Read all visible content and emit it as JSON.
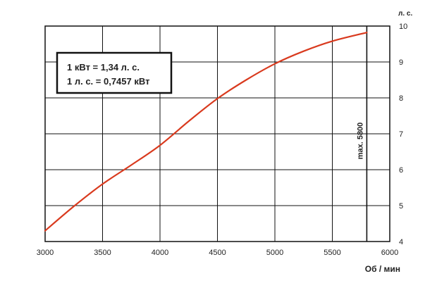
{
  "chart_data": {
    "type": "line",
    "xlabel": "Об / мин",
    "ylabel": "л. с.",
    "xlim": [
      3000,
      6000
    ],
    "ylim": [
      4,
      10
    ],
    "x_ticks": [
      "3000",
      "3500",
      "4000",
      "4500",
      "5000",
      "5500",
      "6000"
    ],
    "y_ticks": [
      "4",
      "5",
      "6",
      "7",
      "8",
      "9",
      "10"
    ],
    "grid": true,
    "series": [
      {
        "color": "#d93a1e",
        "x": [
          3000,
          3250,
          3500,
          3750,
          4000,
          4250,
          4500,
          4750,
          5000,
          5250,
          5500,
          5800
        ],
        "y": [
          4.3,
          4.98,
          5.6,
          6.13,
          6.68,
          7.35,
          7.98,
          8.5,
          8.95,
          9.3,
          9.58,
          9.82
        ]
      }
    ],
    "annotations": {
      "conversion_line1": "1 кВт = 1,34 л. с.",
      "conversion_line2": "1 л. с. = 0,7457 кВт",
      "max_label": "max. 5800",
      "max_x": 5800
    }
  }
}
